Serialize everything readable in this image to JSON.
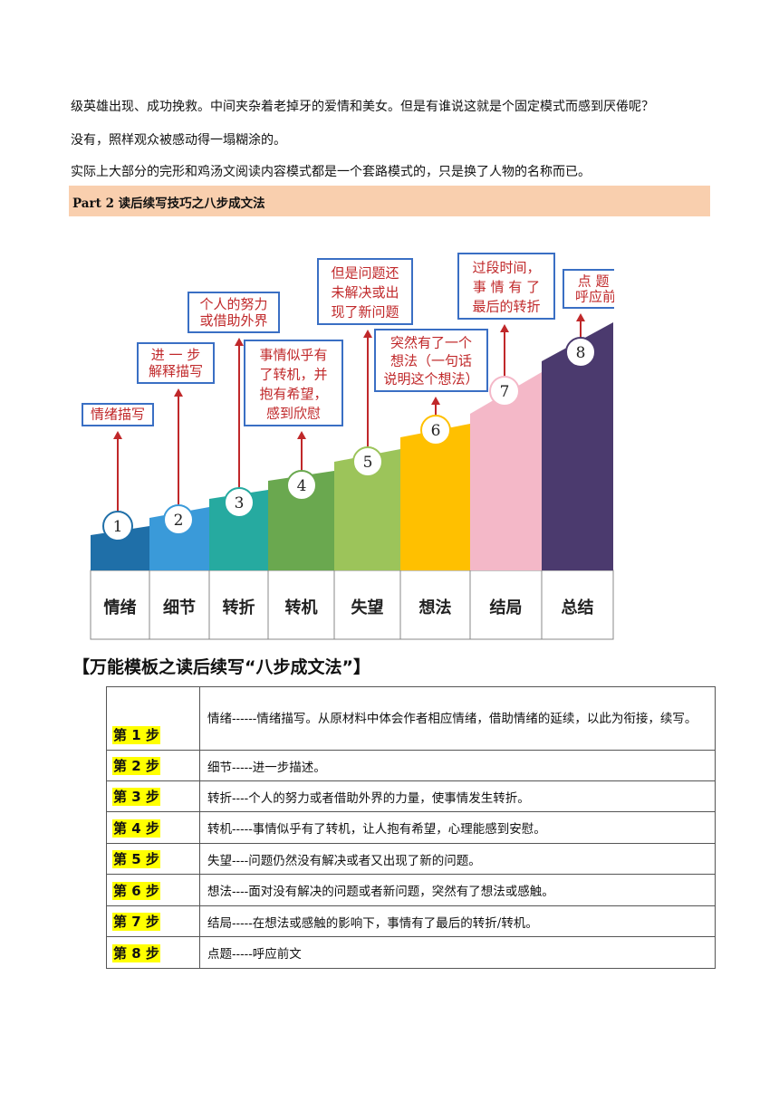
{
  "paragraphs": [
    "级英雄出现、成功挽救。中间夹杂着老掉牙的爱情和美女。但是有谁说这就是个固定模式而感到厌倦呢？",
    "没有，照样观众被感动得一塌糊涂的。",
    "实际上大部分的完形和鸡汤文阅读内容模式都是一个套路模式的，只是换了人物的名称而已。"
  ],
  "part_heading": "Part 2  读后续写技巧之八步成文法",
  "diagram": {
    "steps": [
      {
        "num": "1",
        "label": "情绪",
        "color": "#1f6fa8",
        "callout": [
          "情绪描写"
        ]
      },
      {
        "num": "2",
        "label": "细节",
        "color": "#3a9ad9",
        "callout": [
          "进 一 步",
          "解释描写"
        ]
      },
      {
        "num": "3",
        "label": "转折",
        "color": "#26aaa0",
        "callout": [
          "个人的努力",
          "或借助外界"
        ]
      },
      {
        "num": "4",
        "label": "转机",
        "color": "#6aa84f",
        "callout": [
          "事情似乎有",
          "了转机，并",
          "抱有希望，",
          "感到欣慰"
        ]
      },
      {
        "num": "5",
        "label": "失望",
        "color": "#9cc45a",
        "callout": [
          "但是问题还",
          "未解决或出",
          "现了新问题"
        ]
      },
      {
        "num": "6",
        "label": "想法",
        "color": "#ffc000",
        "callout": [
          "突然有了一个",
          "想法（一句话",
          "说明这个想法）"
        ]
      },
      {
        "num": "7",
        "label": "结局",
        "color": "#f4b8c8",
        "callout": [
          "过段时间，",
          "事 情 有 了",
          "最后的转折"
        ]
      },
      {
        "num": "8",
        "label": "总结",
        "color": "#4b3a6e",
        "callout": [
          "点  题 ，",
          "呼应前文"
        ]
      }
    ]
  },
  "template_heading": "【万能模板之读后续写“八步成文法”】",
  "table": {
    "rows": [
      {
        "step": "第 1 步",
        "desc": "情绪------情绪描写。从原材料中体会作者相应情绪，借助情绪的延续，以此为衔接，续写。"
      },
      {
        "step": "第 2 步",
        "desc": "细节-----进一步描述。"
      },
      {
        "step": "第 3 步",
        "desc": "转折----个人的努力或者借助外界的力量，使事情发生转折。"
      },
      {
        "step": "第 4 步",
        "desc": "  转机-----事情似乎有了转机，让人抱有希望，心理能感到安慰。"
      },
      {
        "step": "第 5 步",
        "desc": "失望----问题仍然没有解决或者又出现了新的问题。"
      },
      {
        "step": "第 6 步",
        "desc": "想法----面对没有解决的问题或者新问题，突然有了想法或感触。"
      },
      {
        "step": "第 7 步",
        "desc": "结局-----在想法或感触的影响下，事情有了最后的转折/转机。"
      },
      {
        "step": "第 8 步",
        "desc": "点题-----呼应前文"
      }
    ]
  }
}
